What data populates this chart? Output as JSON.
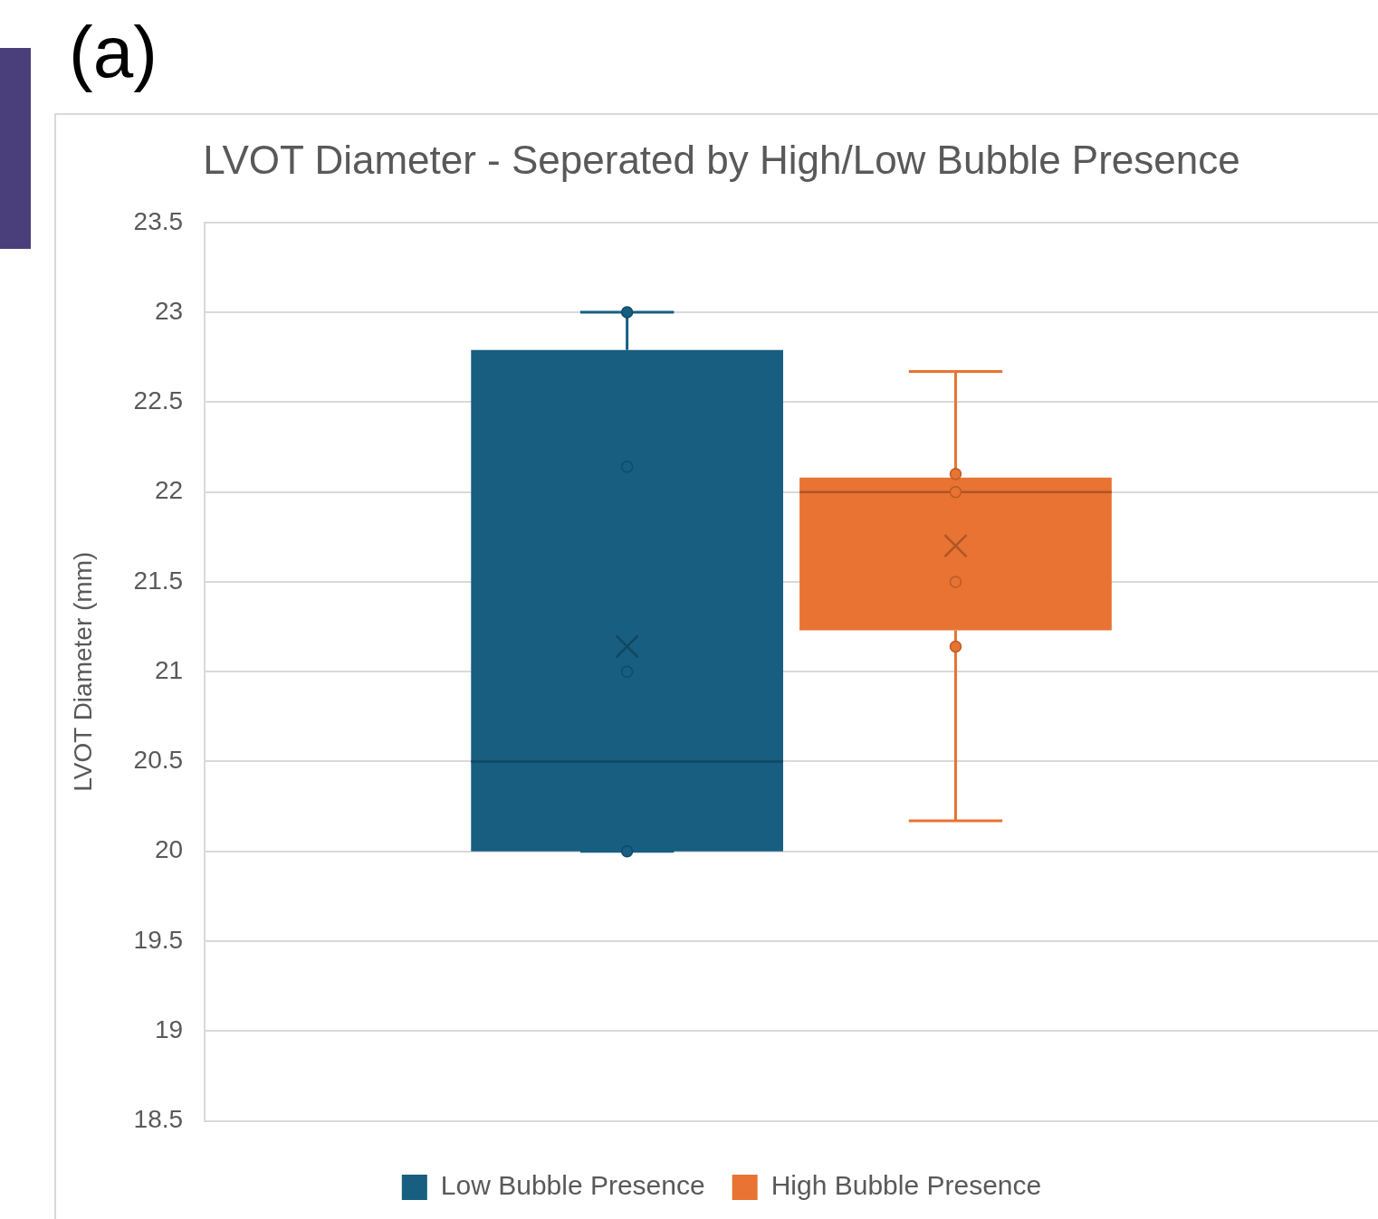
{
  "chart_data": {
    "type": "box",
    "title": "LVOT Diameter - Seperated by High/Low Bubble Presence",
    "ylabel": "LVOT Diameter (mm)",
    "annotations": [
      "(a)"
    ],
    "categories": [
      null
    ],
    "series": [
      {
        "name": "Low Bubble Presence",
        "color": "#175e80",
        "boxes": [
          {
            "low": 20.0,
            "q1": 20.0,
            "median": 20.5,
            "q3": 22.79,
            "high": 23.0,
            "mean": 21.14
          }
        ]
      },
      {
        "name": "High Bubble Presence",
        "color": "#e87332",
        "boxes": [
          {
            "low": 20.17,
            "q1": 21.23,
            "median": 22.0,
            "q3": 22.08,
            "high": 22.67,
            "mean": 21.7
          }
        ]
      },
      {
        "type": "scatter",
        "color": "#175e80",
        "x": [
          null,
          null,
          null,
          null
        ],
        "values": [
          23.0,
          22.14,
          21.0,
          20.0
        ]
      },
      {
        "type": "scatter",
        "color": "#e87332",
        "x": [
          null,
          null,
          null,
          null
        ],
        "values": [
          22.1,
          22.0,
          21.5,
          21.14
        ]
      }
    ],
    "ylim": [
      18.5,
      23.5
    ],
    "yticks": [
      18.5,
      19,
      19.5,
      20,
      20.5,
      21,
      21.5,
      22,
      22.5,
      23,
      23.5
    ],
    "grid": "y",
    "legend": "bottom",
    "marker": "circle"
  }
}
